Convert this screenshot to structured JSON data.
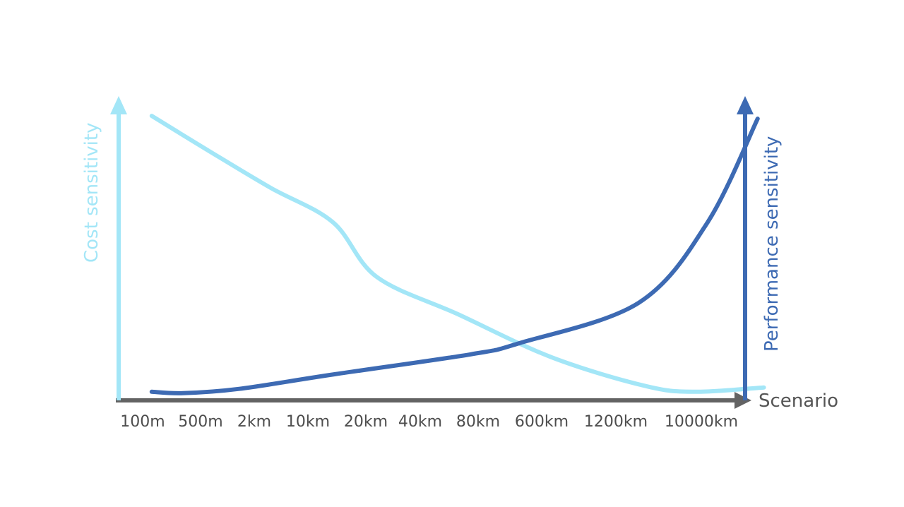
{
  "chart_data": {
    "type": "line",
    "title": "",
    "xlabel": "Scenario",
    "ylabel_left": "Cost sensitivity",
    "ylabel_right": "Performance sensitivity",
    "categories": [
      "100m",
      "500m",
      "2km",
      "10km",
      "20km",
      "40km",
      "80km",
      "600km",
      "1200km",
      "10000km"
    ],
    "ylim": [
      0,
      100
    ],
    "grid": false,
    "legend": "none",
    "series": [
      {
        "axis": "left",
        "color": "#a3e6f7",
        "points": [
          [
            0.1,
            99
          ],
          [
            1,
            87
          ],
          [
            2,
            74
          ],
          [
            3,
            62
          ],
          [
            3.7,
            43
          ],
          [
            5,
            30
          ],
          [
            6.5,
            15
          ],
          [
            8,
            5
          ],
          [
            8.8,
            3
          ],
          [
            9.9,
            4.5
          ]
        ]
      },
      {
        "axis": "right",
        "color": "#3d6ab3",
        "points": [
          [
            0.1,
            3
          ],
          [
            0.6,
            2.5
          ],
          [
            1.5,
            4
          ],
          [
            3,
            9
          ],
          [
            5.2,
            16
          ],
          [
            6,
            20
          ],
          [
            7.9,
            34
          ],
          [
            9,
            62
          ],
          [
            9.8,
            98
          ]
        ]
      }
    ],
    "axis_colors": {
      "left": "#a3e6f7",
      "right": "#3d6ab3",
      "x": "#636363",
      "tick_text": "#4d4d4d",
      "xlabel_text": "#555555"
    }
  }
}
